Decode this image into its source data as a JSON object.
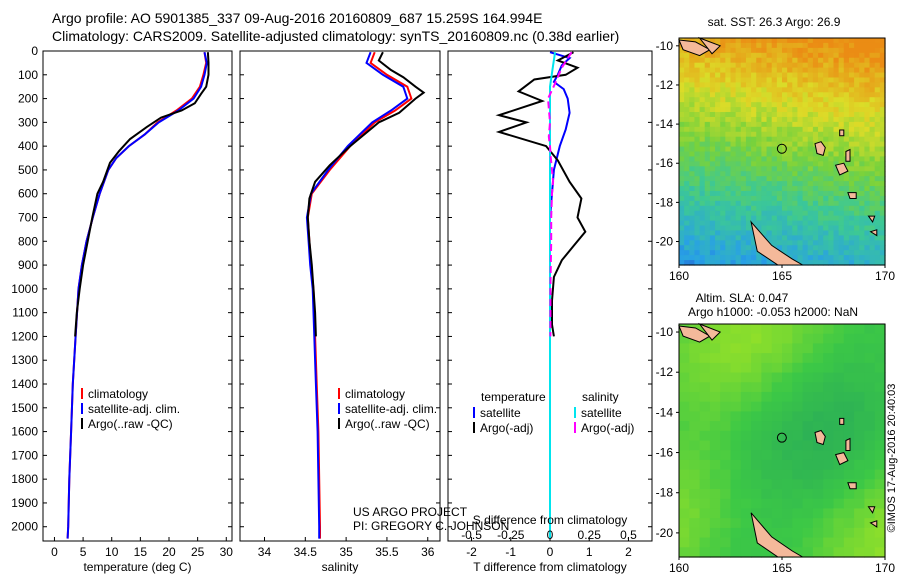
{
  "header": {
    "line1": "Argo profile: AO 5901385_337 09-Aug-2016 20160809_687 15.259S 164.994E",
    "line2": "Climatology: CARS2009. Satellite-adjusted climatology: synTS_20160809.nc (0.38d earlier)"
  },
  "colors": {
    "climatology": "#ff0000",
    "satellite": "#0000ff",
    "argo": "#000000",
    "satellite_salinity": "#00e5ee",
    "argo_salinity": "#ff00ff",
    "land": "#f4b99a"
  },
  "chart_data": [
    {
      "type": "line",
      "panel": "temperature",
      "xlabel": "temperature (deg C)",
      "ylabel": "",
      "xlim": [
        -2,
        31
      ],
      "ylim": [
        2060,
        0
      ],
      "xticks": [
        0,
        5,
        10,
        15,
        20,
        25,
        30
      ],
      "yticks": [
        0,
        100,
        200,
        300,
        400,
        500,
        600,
        700,
        800,
        900,
        1000,
        1100,
        1200,
        1300,
        1400,
        1500,
        1600,
        1700,
        1800,
        1900,
        2000
      ],
      "legend": [
        "climatology",
        "satellite-adj. clim.",
        "Argo(..raw -QC)"
      ],
      "series": [
        {
          "name": "climatology",
          "color": "#ff0000",
          "points": [
            [
              26.2,
              5
            ],
            [
              26.5,
              50
            ],
            [
              26,
              100
            ],
            [
              25.4,
              150
            ],
            [
              24,
              200
            ],
            [
              21.3,
              250
            ],
            [
              18,
              300
            ],
            [
              15.8,
              350
            ],
            [
              13,
              400
            ],
            [
              10.8,
              450
            ],
            [
              9.4,
              500
            ],
            [
              7.9,
              600
            ],
            [
              6.7,
              700
            ],
            [
              5.6,
              800
            ],
            [
              4.8,
              900
            ],
            [
              4.2,
              1000
            ],
            [
              3.7,
              1200
            ],
            [
              3.2,
              1400
            ],
            [
              2.9,
              1600
            ],
            [
              2.6,
              1800
            ],
            [
              2.4,
              2000
            ],
            [
              2.3,
              2050
            ]
          ]
        },
        {
          "name": "satellite-adj. clim.",
          "color": "#0000ff",
          "points": [
            [
              26.2,
              5
            ],
            [
              26.6,
              50
            ],
            [
              26.2,
              100
            ],
            [
              25.6,
              150
            ],
            [
              24.3,
              200
            ],
            [
              21.6,
              250
            ],
            [
              18.2,
              300
            ],
            [
              15.8,
              350
            ],
            [
              13,
              400
            ],
            [
              10.8,
              450
            ],
            [
              9.4,
              500
            ],
            [
              7.9,
              600
            ],
            [
              6.7,
              700
            ],
            [
              5.6,
              800
            ],
            [
              4.8,
              900
            ],
            [
              4.2,
              1000
            ],
            [
              3.7,
              1200
            ],
            [
              3.2,
              1400
            ],
            [
              2.9,
              1600
            ],
            [
              2.6,
              1800
            ],
            [
              2.4,
              2000
            ],
            [
              2.3,
              2050
            ]
          ]
        },
        {
          "name": "Argo(..raw -QC)",
          "color": "#000000",
          "points": [
            [
              26.8,
              5
            ],
            [
              26.9,
              50
            ],
            [
              26.9,
              100
            ],
            [
              26.5,
              150
            ],
            [
              25.6,
              180
            ],
            [
              24.5,
              220
            ],
            [
              22.2,
              250
            ],
            [
              18.6,
              280
            ],
            [
              16.1,
              320
            ],
            [
              13.2,
              370
            ],
            [
              11.3,
              420
            ],
            [
              9.7,
              470
            ],
            [
              8.5,
              550
            ],
            [
              7.5,
              600
            ],
            [
              6.6,
              700
            ],
            [
              5.8,
              800
            ],
            [
              5,
              900
            ],
            [
              4.4,
              1000
            ],
            [
              3.9,
              1100
            ],
            [
              3.6,
              1200
            ]
          ]
        }
      ]
    },
    {
      "type": "line",
      "panel": "salinity",
      "xlabel": "salinity",
      "ylabel": "",
      "xlim": [
        33.7,
        36.15
      ],
      "ylim": [
        2060,
        0
      ],
      "xticks": [
        34,
        34.5,
        35,
        35.5,
        36
      ],
      "legend": [
        "climatology",
        "satellite-adj. clim.",
        "Argo(..raw -QC)"
      ],
      "annotation": [
        "US ARGO PROJECT",
        "PI: GREGORY C. JOHNSON"
      ],
      "series": [
        {
          "name": "climatology",
          "color": "#ff0000",
          "points": [
            [
              35.35,
              5
            ],
            [
              35.3,
              50
            ],
            [
              35.5,
              100
            ],
            [
              35.75,
              150
            ],
            [
              35.8,
              200
            ],
            [
              35.6,
              250
            ],
            [
              35.35,
              300
            ],
            [
              35.05,
              400
            ],
            [
              34.8,
              500
            ],
            [
              34.58,
              600
            ],
            [
              34.53,
              700
            ],
            [
              34.55,
              800
            ],
            [
              34.57,
              900
            ],
            [
              34.6,
              1000
            ],
            [
              34.62,
              1200
            ],
            [
              34.64,
              1400
            ],
            [
              34.66,
              1600
            ],
            [
              34.67,
              1800
            ],
            [
              34.68,
              2000
            ],
            [
              34.68,
              2050
            ]
          ]
        },
        {
          "name": "satellite-adj. clim.",
          "color": "#0000ff",
          "points": [
            [
              35.3,
              5
            ],
            [
              35.25,
              50
            ],
            [
              35.45,
              100
            ],
            [
              35.7,
              150
            ],
            [
              35.75,
              200
            ],
            [
              35.55,
              250
            ],
            [
              35.32,
              300
            ],
            [
              35.02,
              400
            ],
            [
              34.78,
              500
            ],
            [
              34.57,
              600
            ],
            [
              34.52,
              700
            ],
            [
              34.54,
              800
            ],
            [
              34.56,
              900
            ],
            [
              34.59,
              1000
            ],
            [
              34.61,
              1200
            ],
            [
              34.63,
              1400
            ],
            [
              34.65,
              1600
            ],
            [
              34.66,
              1800
            ],
            [
              34.67,
              2000
            ],
            [
              34.67,
              2050
            ]
          ]
        },
        {
          "name": "Argo(..raw -QC)",
          "color": "#000000",
          "points": [
            [
              35.45,
              5
            ],
            [
              35.4,
              40
            ],
            [
              35.55,
              80
            ],
            [
              35.7,
              110
            ],
            [
              35.85,
              150
            ],
            [
              35.95,
              175
            ],
            [
              35.85,
              200
            ],
            [
              35.65,
              260
            ],
            [
              35.4,
              300
            ],
            [
              35.05,
              400
            ],
            [
              34.8,
              480
            ],
            [
              34.62,
              550
            ],
            [
              34.55,
              620
            ],
            [
              34.53,
              700
            ],
            [
              34.55,
              800
            ],
            [
              34.58,
              900
            ],
            [
              34.6,
              1000
            ],
            [
              34.62,
              1100
            ],
            [
              34.63,
              1200
            ]
          ]
        }
      ]
    },
    {
      "type": "line",
      "panel": "difference",
      "xlabel": "T difference from climatology",
      "xlabel2": "S difference from climatology",
      "ylabel": "",
      "xlim": [
        -2.6,
        2.6
      ],
      "ylim": [
        2060,
        0
      ],
      "xticks": [
        -2,
        -1,
        0,
        1,
        2
      ],
      "xticks2": [
        "-0.5",
        "-0.25",
        "0",
        "0.25",
        "0.5"
      ],
      "legend_headers": [
        "temperature",
        "salinity"
      ],
      "legend": [
        "satellite",
        "Argo(-adj)",
        "satellite",
        "Argo(-adj)"
      ],
      "series": [
        {
          "name": "satellite",
          "group": "temperature",
          "color": "#0000ff",
          "points": [
            [
              0,
              5
            ],
            [
              0.5,
              30
            ],
            [
              0.3,
              60
            ],
            [
              0.2,
              100
            ],
            [
              0.1,
              130
            ],
            [
              0.35,
              160
            ],
            [
              0.45,
              200
            ],
            [
              0.5,
              260
            ],
            [
              0.4,
              330
            ],
            [
              0.25,
              400
            ],
            [
              0.1,
              500
            ],
            [
              0,
              700
            ],
            [
              0,
              1000
            ],
            [
              0,
              1500
            ],
            [
              0,
              2050
            ]
          ]
        },
        {
          "name": "Argo(-adj)",
          "group": "temperature",
          "color": "#000000",
          "points": [
            [
              0.6,
              5
            ],
            [
              0.2,
              40
            ],
            [
              0.7,
              70
            ],
            [
              0.4,
              100
            ],
            [
              -0.4,
              120
            ],
            [
              -0.8,
              170
            ],
            [
              -0.2,
              210
            ],
            [
              -1.3,
              270
            ],
            [
              -0.6,
              300
            ],
            [
              -1.3,
              340
            ],
            [
              -0.1,
              400
            ],
            [
              0.2,
              460
            ],
            [
              0.5,
              550
            ],
            [
              0.8,
              620
            ],
            [
              0.7,
              700
            ],
            [
              0.9,
              760
            ],
            [
              0.6,
              820
            ],
            [
              0.3,
              880
            ],
            [
              0.1,
              950
            ],
            [
              0.05,
              1050
            ],
            [
              0.05,
              1150
            ],
            [
              0.1,
              1200
            ]
          ]
        },
        {
          "name": "satellite",
          "group": "salinity",
          "color": "#00e5ee",
          "points": [
            [
              0.13,
              5
            ],
            [
              0.08,
              60
            ],
            [
              0,
              150
            ],
            [
              0,
              300
            ],
            [
              0,
              600
            ],
            [
              0,
              1000
            ],
            [
              0,
              1500
            ],
            [
              0,
              2050
            ]
          ]
        },
        {
          "name": "Argo(-adj)",
          "group": "salinity",
          "color": "#ff00ff",
          "points": [
            [
              0.55,
              5
            ],
            [
              0.3,
              70
            ],
            [
              0.12,
              140
            ],
            [
              -0.05,
              200
            ],
            [
              0,
              300
            ],
            [
              -0.03,
              360
            ],
            [
              0,
              400
            ],
            [
              0.02,
              450
            ],
            [
              0.05,
              500
            ],
            [
              0.08,
              550
            ],
            [
              0.05,
              600
            ],
            [
              0.03,
              700
            ],
            [
              0.03,
              800
            ],
            [
              0.02,
              900
            ],
            [
              0.01,
              1000
            ],
            [
              0.01,
              1200
            ]
          ]
        }
      ]
    },
    {
      "type": "heatmap",
      "panel": "sst-map",
      "title": "sat. SST: 26.3  Argo: 26.9",
      "xlim": [
        160,
        170
      ],
      "ylim": [
        -21.2,
        -9.6
      ],
      "xticks": [
        160,
        165,
        170
      ],
      "yticks": [
        -10,
        -12,
        -14,
        -16,
        -18,
        -20
      ],
      "profile_location": [
        164.994,
        -15.259
      ]
    },
    {
      "type": "heatmap",
      "panel": "sla-map",
      "title_lines": [
        "Altim. SLA: 0.047",
        "Argo h1000: -0.053  h2000: NaN"
      ],
      "xlim": [
        160,
        170
      ],
      "ylim": [
        -21.2,
        -9.6
      ],
      "xticks": [
        160,
        165,
        170
      ],
      "yticks": [
        -10,
        -12,
        -14,
        -16,
        -18,
        -20
      ],
      "profile_location": [
        164.994,
        -15.259
      ],
      "side_label": "©IMOS 17-Aug-2016 20:40:03"
    }
  ]
}
